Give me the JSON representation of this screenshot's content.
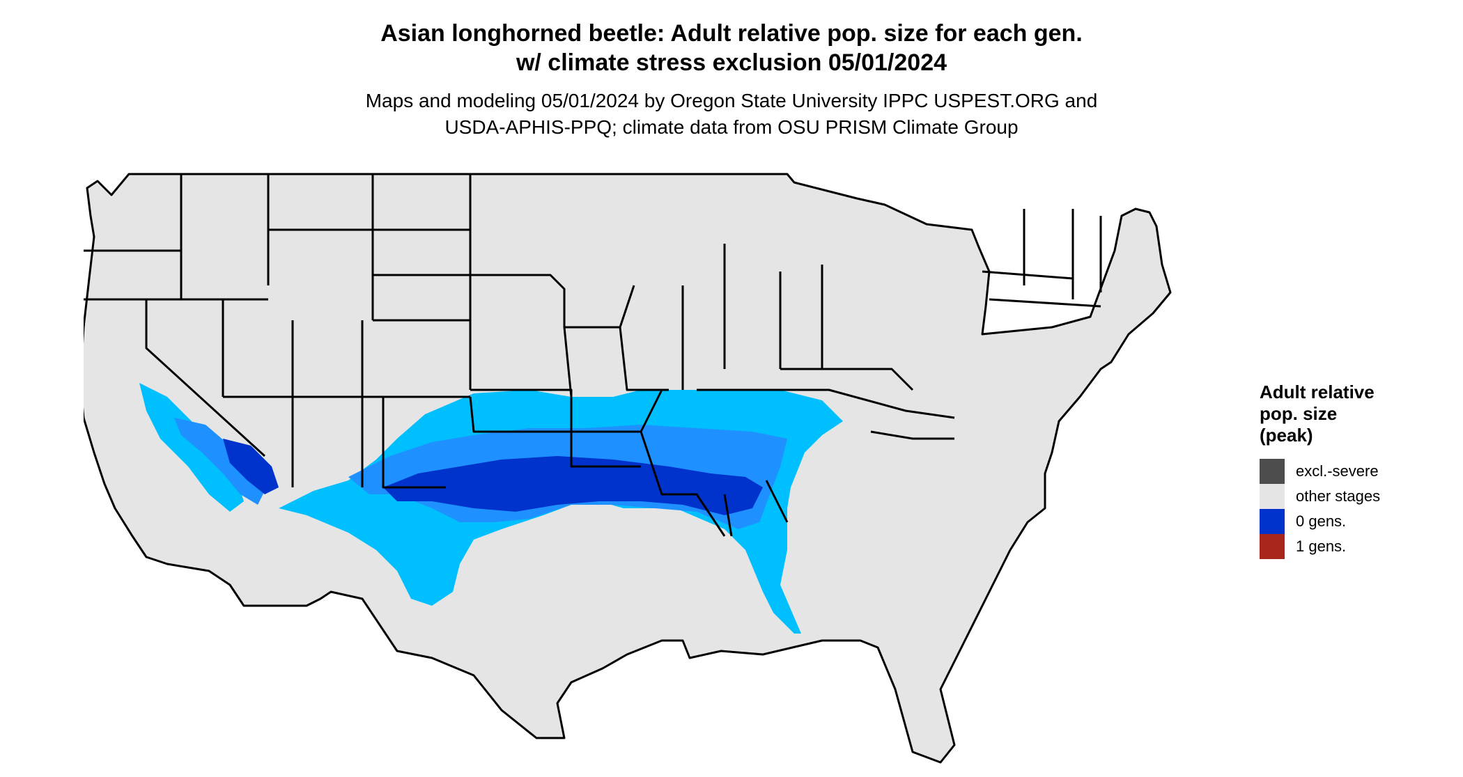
{
  "title": {
    "line1": "Asian longhorned beetle: Adult relative pop. size for each gen.",
    "line2": "w/ climate stress exclusion 05/01/2024"
  },
  "subtitle": {
    "line1": "Maps and modeling 05/01/2024 by Oregon State University IPPC USPEST.ORG and",
    "line2": "USDA-APHIS-PPQ; climate data from OSU PRISM Climate Group"
  },
  "legend": {
    "title_lines": [
      "Adult relative",
      "pop. size",
      "(peak)"
    ],
    "items": [
      {
        "label": "excl.-severe",
        "color": "#4d4d4d"
      },
      {
        "label": "other stages",
        "color": "#e5e5e5"
      },
      {
        "label": "0 gens.",
        "color": "#0033cc"
      },
      {
        "label": "1 gens.",
        "color": "#a8261a"
      }
    ]
  },
  "map_colors": {
    "land": "#e5e5e5",
    "state_border": "#000000",
    "population_light": "#00bfff",
    "population_mid": "#1e90ff",
    "population_dark": "#0033cc"
  }
}
